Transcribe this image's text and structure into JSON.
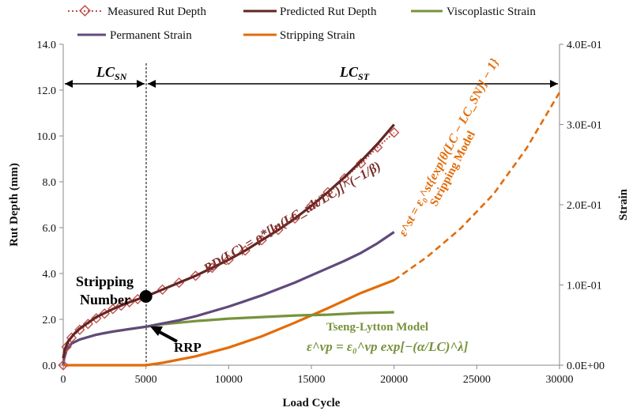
{
  "chart_data": {
    "type": "line",
    "x_label": "Load Cycle",
    "y_label_left": "Rut Depth (mm)",
    "y_label_right": "Strain",
    "x_ticks": [
      "0",
      "5000",
      "10000",
      "15000",
      "20000",
      "25000",
      "30000"
    ],
    "y_left_ticks": [
      "0.0",
      "2.0",
      "4.0",
      "6.0",
      "8.0",
      "10.0",
      "12.0",
      "14.0"
    ],
    "y_right_ticks": [
      "0.0E+00",
      "1.0E-01",
      "2.0E-01",
      "3.0E-01",
      "4.0E-01"
    ],
    "xlim": [
      0,
      30000
    ],
    "ylim_left": [
      0,
      14
    ],
    "ylim_right": [
      0,
      0.4
    ],
    "grid": false,
    "legend_position": "top",
    "legend": [
      {
        "label": "Measured Rut Depth",
        "color": "#c0504d",
        "style": "dotted-diamond"
      },
      {
        "label": "Predicted Rut Depth",
        "color": "#632523",
        "style": "solid"
      },
      {
        "label": "Viscoplastic Strain",
        "color": "#77933c",
        "style": "solid"
      },
      {
        "label": "Permanent Strain",
        "color": "#604a7b",
        "style": "solid"
      },
      {
        "label": "Stripping Strain",
        "color": "#e36c09",
        "style": "solid"
      }
    ],
    "series": [
      {
        "name": "Measured Rut Depth",
        "axis": "left",
        "color": "#c0504d",
        "x": [
          0,
          200,
          500,
          1000,
          1500,
          2000,
          2500,
          3000,
          3500,
          4000,
          4500,
          5000,
          6000,
          7000,
          8000,
          9000,
          10000,
          11000,
          12000,
          13000,
          14000,
          15000,
          16000,
          17000,
          18000,
          19000,
          20000
        ],
        "y": [
          0.0,
          0.8,
          1.2,
          1.55,
          1.8,
          2.05,
          2.25,
          2.45,
          2.6,
          2.75,
          2.88,
          3.0,
          3.3,
          3.6,
          3.9,
          4.25,
          4.6,
          5.0,
          5.45,
          5.9,
          6.4,
          6.95,
          7.55,
          8.15,
          8.8,
          9.5,
          10.15
        ]
      },
      {
        "name": "Predicted Rut Depth",
        "axis": "left",
        "color": "#632523",
        "x": [
          0,
          100,
          300,
          700,
          1000,
          2000,
          3000,
          4000,
          5000,
          6000,
          7000,
          8000,
          9000,
          10000,
          11000,
          12000,
          13000,
          14000,
          15000,
          16000,
          17000,
          18000,
          19000,
          20000
        ],
        "y": [
          0.3,
          0.7,
          1.05,
          1.4,
          1.6,
          2.1,
          2.45,
          2.75,
          3.0,
          3.3,
          3.6,
          3.9,
          4.25,
          4.6,
          5.0,
          5.45,
          5.9,
          6.4,
          6.95,
          7.55,
          8.2,
          8.9,
          9.65,
          10.5
        ]
      },
      {
        "name": "Permanent Strain",
        "axis": "right",
        "color": "#604a7b",
        "x": [
          0,
          50,
          200,
          500,
          1000,
          2000,
          3000,
          4000,
          5000,
          6000,
          7000,
          8000,
          9000,
          10000,
          11000,
          12000,
          13000,
          14000,
          15000,
          16000,
          17000,
          18000,
          19000,
          20000
        ],
        "y": [
          0.0,
          0.008,
          0.019,
          0.027,
          0.032,
          0.038,
          0.042,
          0.045,
          0.048,
          0.052,
          0.056,
          0.061,
          0.067,
          0.073,
          0.08,
          0.087,
          0.095,
          0.103,
          0.112,
          0.121,
          0.13,
          0.14,
          0.152,
          0.166
        ]
      },
      {
        "name": "Viscoplastic Strain",
        "axis": "right",
        "color": "#77933c",
        "x": [
          0,
          50,
          200,
          500,
          1000,
          2000,
          3000,
          4000,
          5000,
          6000,
          8000,
          10000,
          12000,
          14000,
          16000,
          18000,
          20000
        ],
        "y": [
          0.0,
          0.008,
          0.019,
          0.027,
          0.032,
          0.038,
          0.042,
          0.045,
          0.048,
          0.051,
          0.055,
          0.058,
          0.06,
          0.062,
          0.063,
          0.065,
          0.066
        ]
      },
      {
        "name": "Stripping Strain",
        "axis": "right",
        "color": "#e36c09",
        "x": [
          0,
          4800,
          5000,
          6000,
          8000,
          10000,
          12000,
          14000,
          16000,
          18000,
          20000
        ],
        "y": [
          0.0,
          0.0,
          0.0,
          0.003,
          0.011,
          0.022,
          0.036,
          0.053,
          0.071,
          0.09,
          0.106
        ]
      },
      {
        "name": "",
        "axis": "right",
        "color": "#e36c09",
        "dashed": true,
        "x": [
          20000,
          22000,
          24000,
          26000,
          28000,
          30000
        ],
        "y": [
          0.106,
          0.135,
          0.17,
          0.213,
          0.27,
          0.34
        ]
      }
    ],
    "stripping_number_x": 5000,
    "stripping_number_y": 3.0
  },
  "annotations": {
    "lc_sn": "LC",
    "lc_sn_sub": "SN",
    "lc_st": "LC",
    "lc_st_sub": "ST",
    "stripping_number_line1": "Stripping",
    "stripping_number_line2": "Number",
    "rrp": "RRP",
    "tseng_lytton": "Tseng-Lytton Model",
    "tseng_eq": "ε^vp = ε₀^vp exp[−(α/LC)^λ]",
    "stripping_model": "Stripping Model",
    "stripping_eq": "ε^st = ε₀^st{exp[θ(LC − LC_SN)] − 1}",
    "rd_eq": "RD(LC) = ρ*[ln(LC_ult/LC)]^(−1/β)"
  }
}
